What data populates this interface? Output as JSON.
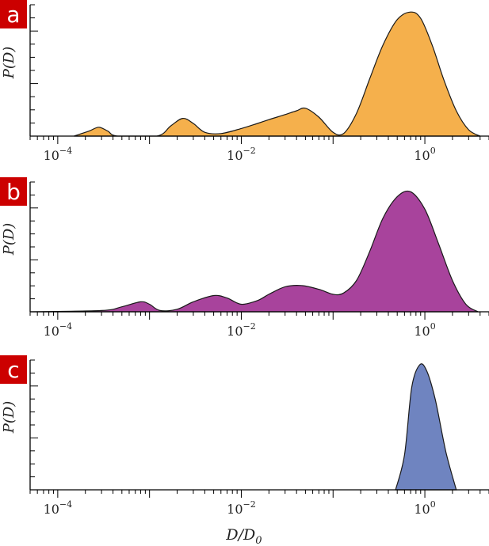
{
  "chart_data": [
    {
      "type": "area",
      "panel_label": "a",
      "ylabel": "P(D)",
      "xlabel": "",
      "x_scale": "log",
      "xlim": [
        5e-05,
        5
      ],
      "ylim": [
        0,
        1.0
      ],
      "x_tick_labels": [
        {
          "base": "10",
          "exp": "−4"
        },
        {
          "base": "10",
          "exp": "−2"
        },
        {
          "base": "10",
          "exp": "0"
        }
      ],
      "fill_color": "#f5b04c",
      "x": [
        0.00015,
        0.00022,
        0.00028,
        0.00035,
        0.00045,
        0.0012,
        0.0017,
        0.0023,
        0.003,
        0.004,
        0.006,
        0.01,
        0.015,
        0.02,
        0.03,
        0.04,
        0.05,
        0.07,
        0.1,
        0.13,
        0.18,
        0.25,
        0.35,
        0.5,
        0.7,
        0.9,
        1.2,
        1.6,
        2.2,
        3.0,
        4.0
      ],
      "y": [
        0,
        0.04,
        0.07,
        0.04,
        0,
        0,
        0.08,
        0.14,
        0.1,
        0.03,
        0.02,
        0.06,
        0.1,
        0.13,
        0.17,
        0.2,
        0.22,
        0.15,
        0.03,
        0.02,
        0.18,
        0.45,
        0.72,
        0.92,
        0.98,
        0.93,
        0.72,
        0.45,
        0.2,
        0.05,
        0
      ]
    },
    {
      "type": "area",
      "panel_label": "b",
      "ylabel": "P(D)",
      "xlabel": "",
      "x_scale": "log",
      "xlim": [
        5e-05,
        5
      ],
      "ylim": [
        0,
        1.0
      ],
      "x_tick_labels": [
        {
          "base": "10",
          "exp": "−4"
        },
        {
          "base": "10",
          "exp": "0"
        },
        {
          "base": "10",
          "exp": "−2"
        }
      ],
      "fill_color": "#a8439c",
      "x": [
        5e-05,
        0.0003,
        0.0005,
        0.0008,
        0.001,
        0.0013,
        0.002,
        0.003,
        0.005,
        0.007,
        0.01,
        0.015,
        0.02,
        0.03,
        0.045,
        0.07,
        0.1,
        0.13,
        0.18,
        0.25,
        0.35,
        0.5,
        0.7,
        1.0,
        1.4,
        2.0,
        2.8,
        3.8
      ],
      "y": [
        0,
        0.01,
        0.04,
        0.08,
        0.06,
        0.01,
        0.02,
        0.08,
        0.13,
        0.11,
        0.06,
        0.09,
        0.14,
        0.2,
        0.21,
        0.18,
        0.14,
        0.15,
        0.25,
        0.48,
        0.75,
        0.92,
        0.96,
        0.82,
        0.55,
        0.25,
        0.06,
        0
      ]
    },
    {
      "type": "area",
      "panel_label": "c",
      "ylabel": "P(D)",
      "xlabel": "D/D0",
      "x_scale": "log",
      "xlim": [
        5e-05,
        5
      ],
      "ylim": [
        0,
        1.0
      ],
      "x_tick_labels": [
        {
          "base": "10",
          "exp": "−4"
        },
        {
          "base": "10",
          "exp": "−2"
        },
        {
          "base": "10",
          "exp": "0"
        }
      ],
      "fill_color": "#6f84c0",
      "x": [
        0.48,
        0.6,
        0.72,
        0.88,
        1.05,
        1.3,
        1.7,
        2.2
      ],
      "y": [
        0,
        0.28,
        0.82,
        1.0,
        0.95,
        0.72,
        0.3,
        0
      ]
    }
  ]
}
